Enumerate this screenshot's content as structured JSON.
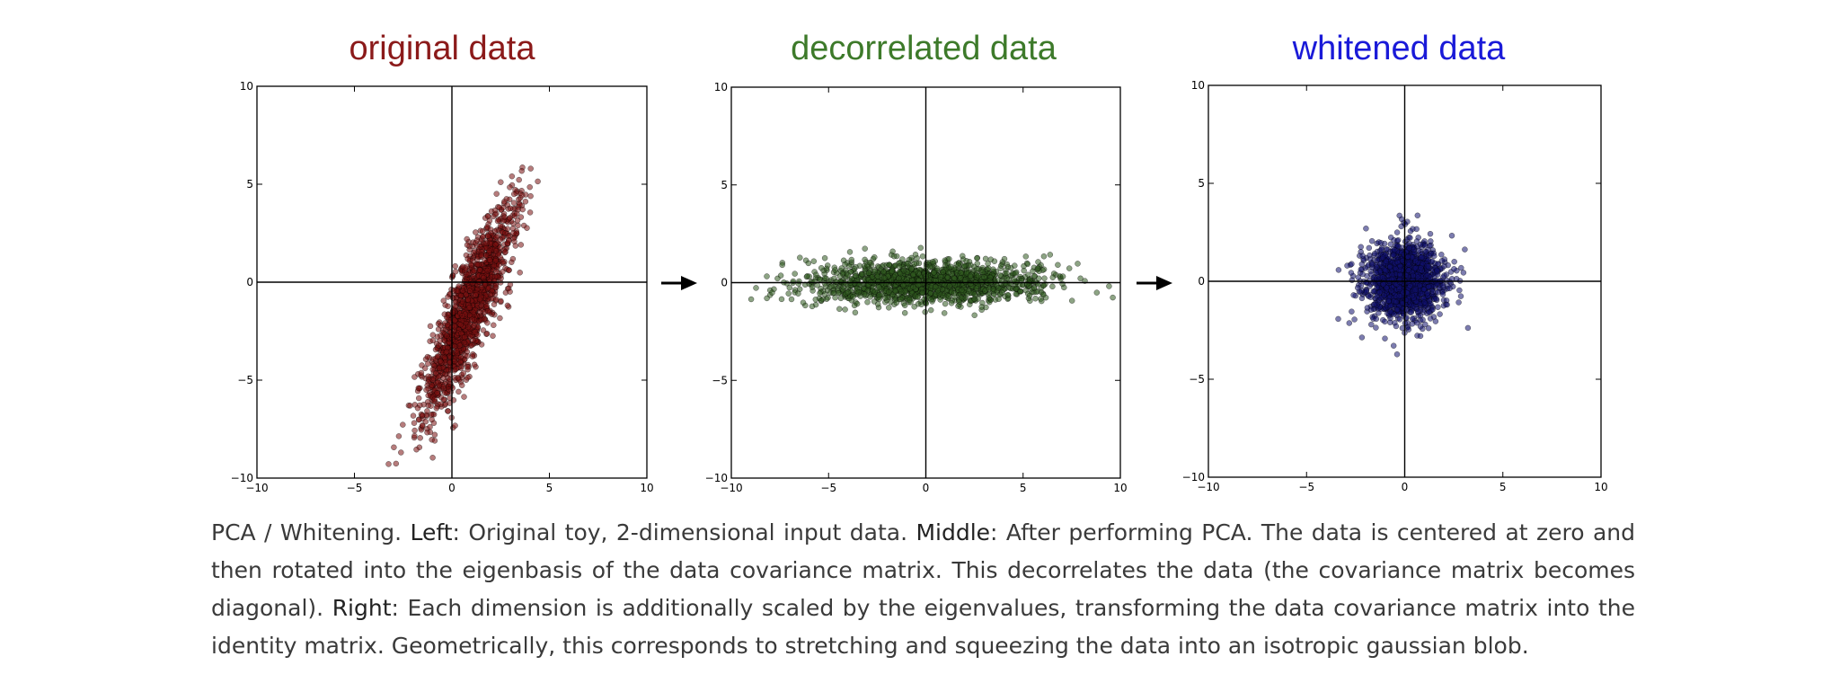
{
  "chart_data": [
    {
      "type": "scatter",
      "title": "original data",
      "title_color": "#8b1a1a",
      "point_color": "#7a1111",
      "xlim": [
        -10,
        10
      ],
      "ylim": [
        -10,
        10
      ],
      "xticks": [
        "−10",
        "−5",
        "0",
        "5",
        "10"
      ],
      "yticks": [
        "10",
        "5",
        "0",
        "−5",
        "−10"
      ],
      "grid": false,
      "axes_through_origin": true,
      "distribution": {
        "mean": [
          0.9,
          -1.3
        ],
        "std_major": 3.0,
        "std_minor": 0.55,
        "angle_deg": 68,
        "n": 1500
      }
    },
    {
      "type": "scatter",
      "title": "decorrelated data",
      "title_color": "#3d7a2a",
      "point_color": "#2f5a1f",
      "xlim": [
        -10,
        10
      ],
      "ylim": [
        -10,
        10
      ],
      "xticks": [
        "−10",
        "−5",
        "0",
        "5",
        "10"
      ],
      "yticks": [
        "10",
        "5",
        "0",
        "−5",
        "−10"
      ],
      "grid": false,
      "axes_through_origin": true,
      "distribution": {
        "mean": [
          0,
          0
        ],
        "std_major": 3.0,
        "std_minor": 0.55,
        "angle_deg": 0,
        "n": 1500
      }
    },
    {
      "type": "scatter",
      "title": "whitened data",
      "title_color": "#1a1ad8",
      "point_color": "#10106e",
      "xlim": [
        -10,
        10
      ],
      "ylim": [
        -10,
        10
      ],
      "xticks": [
        "−10",
        "−5",
        "0",
        "5",
        "10"
      ],
      "yticks": [
        "10",
        "5",
        "0",
        "−5",
        "−10"
      ],
      "grid": false,
      "axes_through_origin": true,
      "distribution": {
        "mean": [
          0,
          0
        ],
        "std_major": 1.0,
        "std_minor": 1.0,
        "angle_deg": 0,
        "n": 1500
      }
    }
  ],
  "caption": {
    "t1": "PCA / Whitening. ",
    "left_label": "Left",
    "t2": ": Original toy, 2-dimensional input data. ",
    "middle_label": "Middle",
    "t3": ": After performing PCA. The data is centered at zero and then rotated into the eigenbasis of the data covariance matrix. This decorrelates the data (the covariance matrix becomes diagonal). ",
    "right_label": "Right",
    "t4": ": Each dimension is additionally scaled by the eigenvalues, transforming the data covariance matrix into the identity matrix. Geometrically, this corresponds to stretching and squeezing the data into an isotropic gaussian blob."
  }
}
